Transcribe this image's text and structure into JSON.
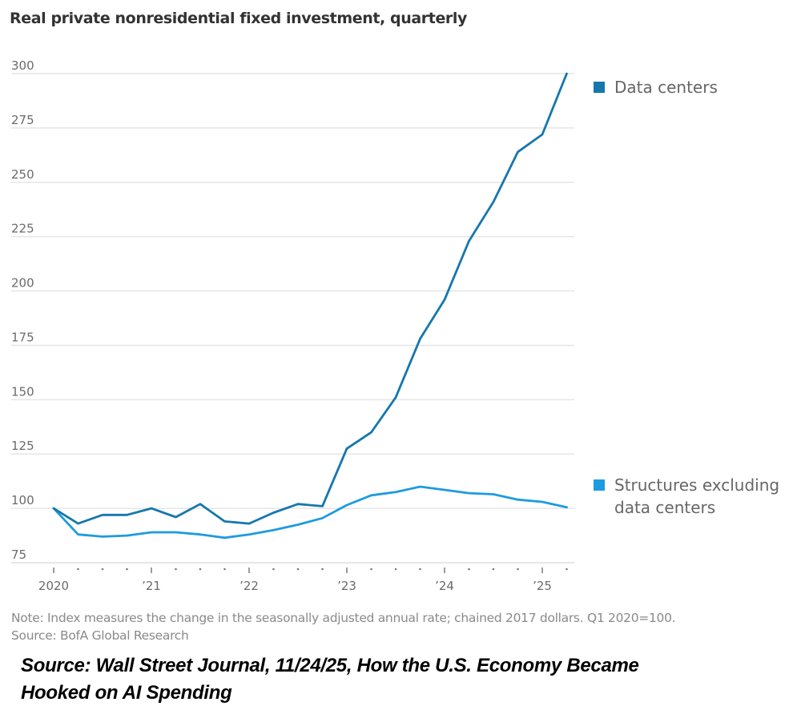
{
  "colors": {
    "data_centers": "#1677ad",
    "structures": "#1d9be0",
    "grid": "#e6e6e6",
    "axis": "#cfcfcf"
  },
  "chart_data": {
    "type": "line",
    "title": "Real private nonresidential fixed investment, quarterly",
    "xlabel": "",
    "ylabel": "",
    "ylim": [
      75,
      300
    ],
    "yticks": [
      75,
      100,
      125,
      150,
      175,
      200,
      225,
      250,
      275,
      300
    ],
    "grid": true,
    "x": [
      "Q1 2020",
      "Q2 2020",
      "Q3 2020",
      "Q4 2020",
      "Q1 2021",
      "Q2 2021",
      "Q3 2021",
      "Q4 2021",
      "Q1 2022",
      "Q2 2022",
      "Q3 2022",
      "Q4 2022",
      "Q1 2023",
      "Q2 2023",
      "Q3 2023",
      "Q4 2023",
      "Q1 2024",
      "Q2 2024",
      "Q3 2024",
      "Q4 2024",
      "Q1 2025",
      "Q2 2025"
    ],
    "xtick_labels": [
      {
        "index": 0,
        "label": "2020"
      },
      {
        "index": 4,
        "label": "’21"
      },
      {
        "index": 8,
        "label": "’22"
      },
      {
        "index": 12,
        "label": "’23"
      },
      {
        "index": 16,
        "label": "’24"
      },
      {
        "index": 20,
        "label": "’25"
      }
    ],
    "series": [
      {
        "name": "Data centers",
        "color_key": "data_centers",
        "values": [
          100,
          93,
          97,
          97,
          100,
          96,
          102,
          94,
          93,
          98,
          102,
          101,
          127.5,
          135,
          151,
          178,
          196,
          223,
          241,
          264,
          272,
          300
        ]
      },
      {
        "name": "Structures excluding data centers",
        "color_key": "structures",
        "values": [
          100,
          88,
          87,
          87.5,
          89,
          89,
          88,
          86.5,
          88,
          90,
          92.5,
          95.5,
          101.5,
          106,
          107.5,
          110,
          108.5,
          107,
          106.5,
          104,
          103,
          100.5
        ]
      }
    ],
    "legend": [
      {
        "label": "Data centers",
        "placement": "top-right"
      },
      {
        "label": "Structures excluding data centers",
        "placement": "right"
      }
    ]
  },
  "note": "Note: Index measures the change in the seasonally adjusted annual rate; chained 2017 dollars. Q1 2020=100.",
  "source": "Source: BofA Global Research",
  "attribution_line1": "Source:  Wall Street Journal, 11/24/25, How the U.S. Economy Became",
  "attribution_line2": "Hooked on AI Spending"
}
